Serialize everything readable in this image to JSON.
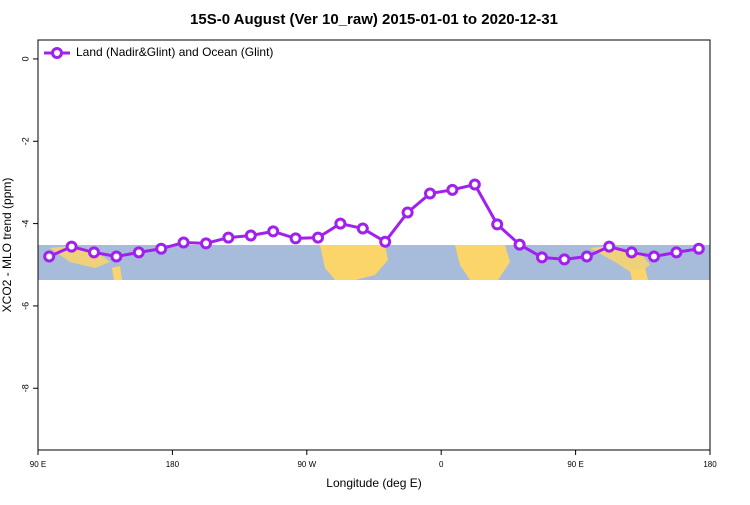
{
  "chart_data": {
    "type": "line",
    "title": "15S-0 August (Ver 10_raw)   2015-01-01 to 2020-12-31",
    "x_label": "Longitude (deg E)",
    "y_label": "XCO2 - MLO trend (ppm)",
    "x": [
      97.5,
      112.5,
      127.5,
      142.5,
      157.5,
      172.5,
      187.5,
      202.5,
      217.5,
      232.5,
      247.5,
      262.5,
      277.5,
      292.5,
      307.5,
      322.5,
      337.5,
      352.5,
      367.5,
      382.5,
      397.5,
      412.5,
      427.5,
      442.5,
      457.5,
      472.5,
      487.5,
      502.5,
      517.5,
      532.5
    ],
    "series": [
      {
        "name": "Land (Nadir&Glint) and Ocean (Glint)",
        "color": "#a020f0",
        "values": [
          -4.8,
          -4.56,
          -4.7,
          -4.8,
          -4.7,
          -4.61,
          -4.46,
          -4.48,
          -4.34,
          -4.29,
          -4.19,
          -4.36,
          -4.34,
          -4.0,
          -4.12,
          -4.44,
          -3.73,
          -3.27,
          -3.18,
          -3.05,
          -4.02,
          -4.51,
          -4.82,
          -4.87,
          -4.8,
          -4.56,
          -4.7,
          -4.8,
          -4.7,
          -4.61
        ]
      }
    ],
    "xlim": [
      90,
      540
    ],
    "xticks": [
      {
        "value": 90,
        "label": "90 E"
      },
      180,
      {
        "value": 270,
        "label": "90 W"
      },
      {
        "value": 360,
        "label": "0"
      },
      {
        "value": 450,
        "label": "90 E"
      },
      {
        "value": 540,
        "label": "180"
      }
    ],
    "ylim": [
      -9.5,
      0.46
    ],
    "yticks": [
      0,
      -2,
      -4,
      -6,
      -8
    ],
    "legend": "top-left"
  }
}
